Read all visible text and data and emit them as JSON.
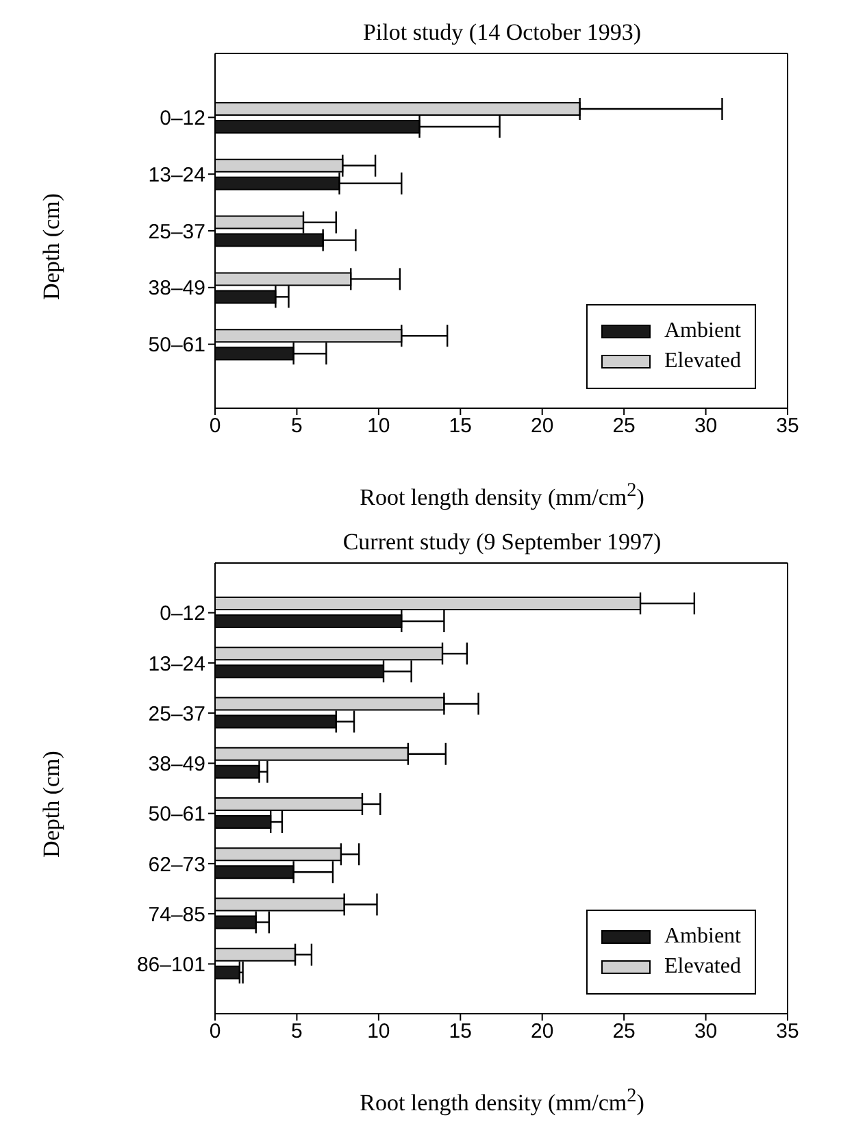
{
  "chart_data": [
    {
      "type": "bar",
      "orientation": "horizontal",
      "title": "Pilot study (14 October 1993)",
      "xlabel": "Root length density (mm/cm$^{2}$)",
      "ylabel": "Depth (cm)",
      "categories": [
        "0–12",
        "13–24",
        "25–37",
        "38–49",
        "50–61"
      ],
      "series": [
        {
          "name": "Ambient",
          "color": "#1a1a1a",
          "values": [
            12.5,
            7.6,
            6.6,
            3.7,
            4.8
          ],
          "errors": [
            [
              12.5,
              17.4
            ],
            [
              7.6,
              11.4
            ],
            [
              6.6,
              8.6
            ],
            [
              3.7,
              4.5
            ],
            [
              4.8,
              6.8
            ]
          ]
        },
        {
          "name": "Elevated",
          "color": "#d0d0d0",
          "values": [
            22.3,
            7.8,
            5.4,
            8.3,
            11.4
          ],
          "errors": [
            [
              22.3,
              31.0
            ],
            [
              7.8,
              9.8
            ],
            [
              5.4,
              7.4
            ],
            [
              8.3,
              11.3
            ],
            [
              11.4,
              14.2
            ]
          ]
        }
      ],
      "xlim": [
        0,
        35
      ],
      "xticks": [
        0,
        5,
        10,
        15,
        20,
        25,
        30,
        35
      ],
      "legend": "bottom right"
    },
    {
      "type": "bar",
      "orientation": "horizontal",
      "title": "Current study (9 September 1997)",
      "xlabel": "Root length density (mm/cm$^{2}$)",
      "ylabel": "Depth (cm)",
      "categories": [
        "0–12",
        "13–24",
        "25–37",
        "38–49",
        "50–61",
        "62–73",
        "74–85",
        "86–101"
      ],
      "series": [
        {
          "name": "Ambient",
          "color": "#1a1a1a",
          "values": [
            11.4,
            10.3,
            7.4,
            2.7,
            3.4,
            4.8,
            2.5,
            1.5
          ],
          "errors": [
            [
              11.4,
              14.0
            ],
            [
              10.3,
              12.0
            ],
            [
              7.4,
              8.5
            ],
            [
              2.7,
              3.2
            ],
            [
              3.4,
              4.1
            ],
            [
              4.8,
              7.2
            ],
            [
              2.5,
              3.3
            ],
            [
              1.5,
              1.7
            ]
          ]
        },
        {
          "name": "Elevated",
          "color": "#d0d0d0",
          "values": [
            26.0,
            13.9,
            14.0,
            11.8,
            9.0,
            7.7,
            7.9,
            4.9
          ],
          "errors": [
            [
              26.0,
              29.3
            ],
            [
              13.9,
              15.4
            ],
            [
              14.0,
              16.1
            ],
            [
              11.8,
              14.1
            ],
            [
              9.0,
              10.1
            ],
            [
              7.7,
              8.8
            ],
            [
              7.9,
              9.9
            ],
            [
              4.9,
              5.9
            ]
          ]
        }
      ],
      "xlim": [
        0,
        35
      ],
      "xticks": [
        0,
        5,
        10,
        15,
        20,
        25,
        30,
        35
      ],
      "legend": "bottom right"
    }
  ]
}
